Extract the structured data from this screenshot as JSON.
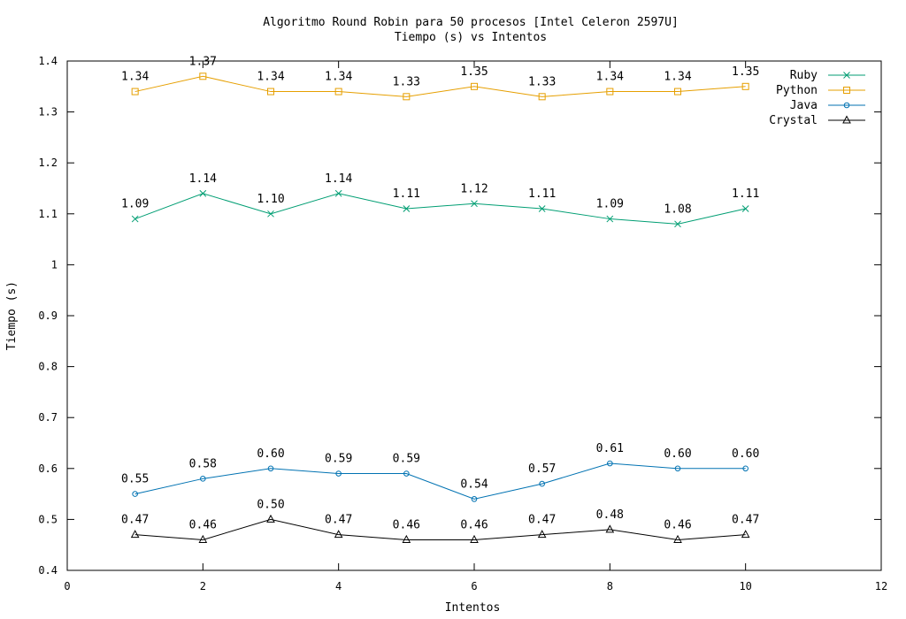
{
  "chart_data": {
    "type": "line",
    "title": "Algoritmo Round Robin para 50 procesos [Intel Celeron 2597U]",
    "subtitle": "Tiempo (s) vs Intentos",
    "xlabel": "Intentos",
    "ylabel": "Tiempo (s)",
    "xlim": [
      0,
      12
    ],
    "ylim": [
      0.4,
      1.4
    ],
    "xticks": [
      0,
      2,
      4,
      6,
      8,
      10,
      12
    ],
    "yticks": [
      0.4,
      0.5,
      0.6,
      0.7,
      0.8,
      0.9,
      1,
      1.1,
      1.2,
      1.3,
      1.4
    ],
    "ytick_labels": [
      "0.4",
      "0.5",
      "0.6",
      "0.7",
      "0.8",
      "0.9",
      "1",
      "1.1",
      "1.2",
      "1.3",
      "1.4"
    ],
    "grid": false,
    "legend_position": "top-right",
    "x": [
      1,
      2,
      3,
      4,
      5,
      6,
      7,
      8,
      9,
      10
    ],
    "series": [
      {
        "name": "Ruby",
        "color": "#009e73",
        "marker": "x",
        "values": [
          1.09,
          1.14,
          1.1,
          1.14,
          1.11,
          1.12,
          1.11,
          1.09,
          1.08,
          1.11
        ],
        "labels": [
          "1.09",
          "1.14",
          "1.10",
          "1.14",
          "1.11",
          "1.12",
          "1.11",
          "1.09",
          "1.08",
          "1.11"
        ]
      },
      {
        "name": "Python",
        "color": "#e69f00",
        "marker": "square",
        "values": [
          1.34,
          1.37,
          1.34,
          1.34,
          1.33,
          1.35,
          1.33,
          1.34,
          1.34,
          1.35
        ],
        "labels": [
          "1.34",
          "1.37",
          "1.34",
          "1.34",
          "1.33",
          "1.35",
          "1.33",
          "1.34",
          "1.34",
          "1.35"
        ]
      },
      {
        "name": "Java",
        "color": "#0072b2",
        "marker": "circle",
        "values": [
          0.55,
          0.58,
          0.6,
          0.59,
          0.59,
          0.54,
          0.57,
          0.61,
          0.6,
          0.6
        ],
        "labels": [
          "0.55",
          "0.58",
          "0.60",
          "0.59",
          "0.59",
          "0.54",
          "0.57",
          "0.61",
          "0.60",
          "0.60"
        ]
      },
      {
        "name": "Crystal",
        "color": "#000000",
        "marker": "triangle",
        "values": [
          0.47,
          0.46,
          0.5,
          0.47,
          0.46,
          0.46,
          0.47,
          0.48,
          0.46,
          0.47
        ],
        "labels": [
          "0.47",
          "0.46",
          "0.50",
          "0.47",
          "0.46",
          "0.46",
          "0.47",
          "0.48",
          "0.46",
          "0.47"
        ]
      }
    ]
  }
}
